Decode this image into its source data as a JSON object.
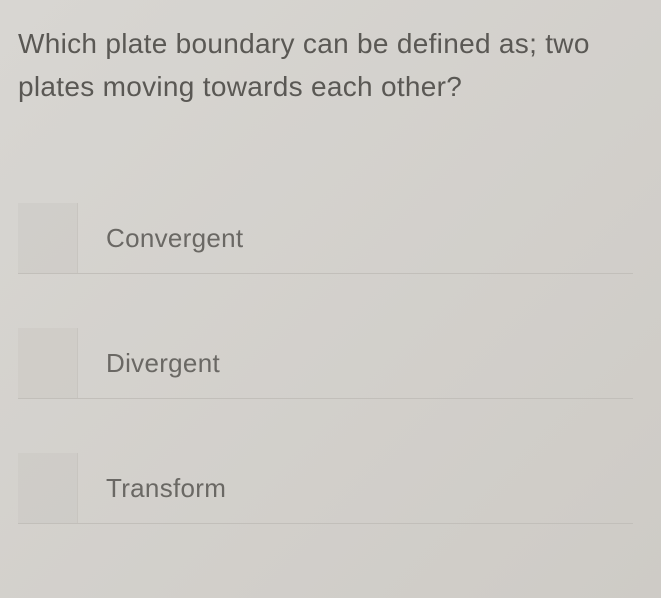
{
  "question": {
    "text": "Which plate boundary can be defined as; two plates moving towards each other?",
    "fontsize": 28,
    "color": "#5a5854"
  },
  "options": [
    {
      "label": "Convergent"
    },
    {
      "label": "Divergent"
    },
    {
      "label": "Transform"
    }
  ],
  "styling": {
    "background_start": "#d8d6d2",
    "background_end": "#cecbc6",
    "option_text_color": "#6a6864",
    "option_fontsize": 26,
    "divider_color": "#c2bfba",
    "checkbox_bg": "rgba(200,197,192,0.4)"
  }
}
